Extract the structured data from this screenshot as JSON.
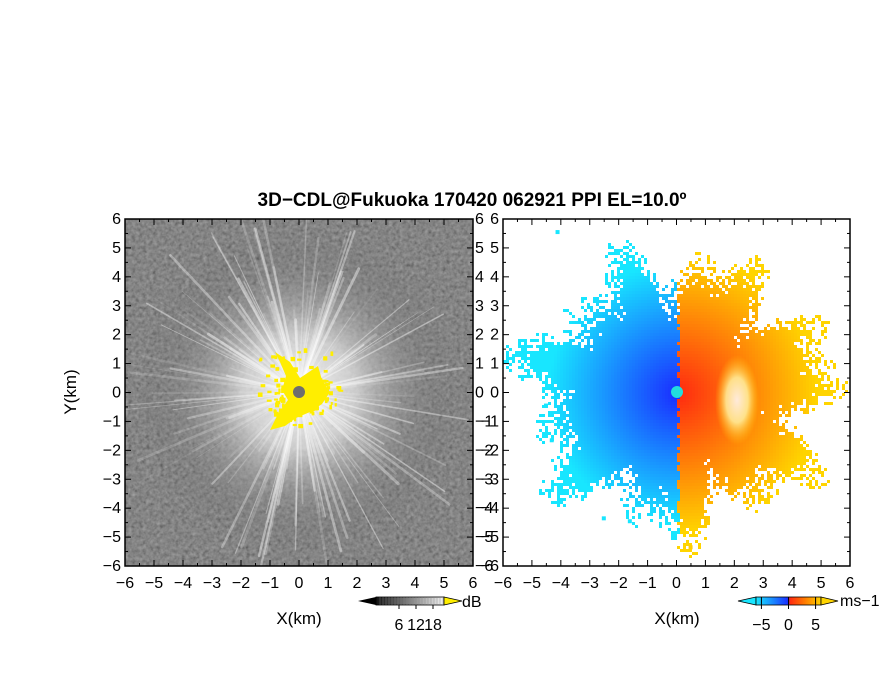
{
  "title": "3D−CDL@Fukuoka 170420 062921 PPI EL=10.0º",
  "chart_data": [
    {
      "type": "heatmap",
      "panel": "left",
      "quantity": "",
      "xlabel": "X(km)",
      "ylabel": "Y(km)",
      "xlim": [
        -6,
        6
      ],
      "ylim": [
        -6,
        6
      ],
      "xticks": [
        -6,
        -5,
        -4,
        -3,
        -2,
        -1,
        0,
        1,
        2,
        3,
        4,
        5,
        6
      ],
      "yticks": [
        -6,
        -5,
        -4,
        -3,
        -2,
        -1,
        0,
        1,
        2,
        3,
        4,
        5,
        6
      ],
      "colormap": "greyscale (black to white), yellow above range",
      "colorbar": {
        "unit": "dB",
        "ticks": [
          6,
          12,
          18
        ]
      },
      "center_marker_color": "#6e6e6e",
      "over_color": "#ffee00"
    },
    {
      "type": "heatmap",
      "panel": "right",
      "quantity": "",
      "xlabel": "X(km)",
      "ylabel": "",
      "xlim": [
        -6,
        6
      ],
      "ylim": [
        -6,
        6
      ],
      "xticks": [
        -6,
        -5,
        -4,
        -3,
        -2,
        -1,
        0,
        1,
        2,
        3,
        4,
        5,
        6
      ],
      "yticks": [
        -6,
        -5,
        -4,
        -3,
        -2,
        -1,
        0,
        1,
        2,
        3,
        4,
        5,
        6
      ],
      "colormap": "cyan-blue (negative) to red-orange-yellow (positive)",
      "colorbar": {
        "unit": "ms−1",
        "ticks": [
          -5,
          0,
          5
        ]
      },
      "center_marker_color": "#22dddd"
    }
  ]
}
